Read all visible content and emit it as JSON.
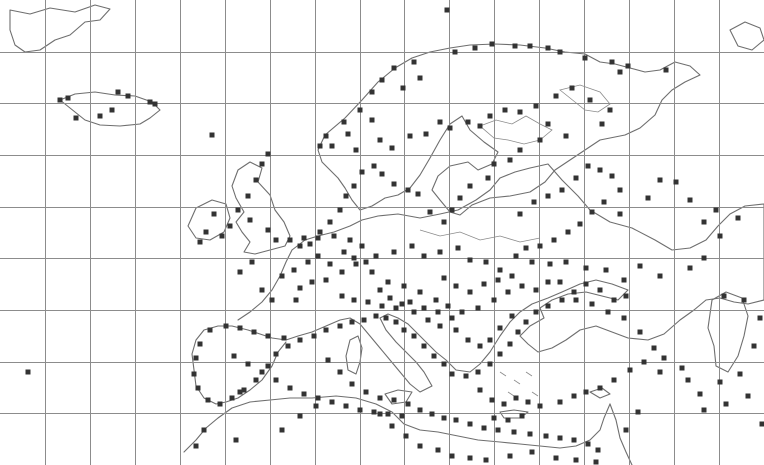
{
  "map": {
    "projection": "equirectangular",
    "background": "#ffffff",
    "colors": {
      "coastline": "#6e6e6e",
      "grid": "#8c8c8c",
      "station_marker": "#333333"
    },
    "grid": {
      "columns": 17,
      "rows": 9,
      "visible": true
    },
    "marker_shape": "square",
    "labels": []
  }
}
